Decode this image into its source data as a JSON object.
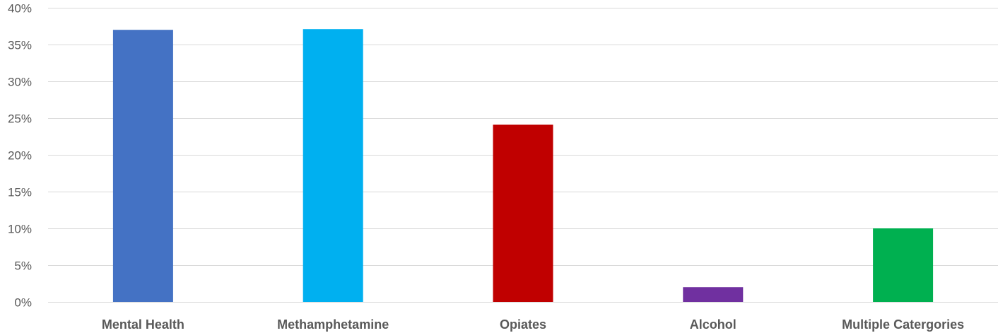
{
  "chart_data": {
    "type": "bar",
    "title": "",
    "xlabel": "",
    "ylabel": "",
    "categories": [
      "Mental Health",
      "Methamphetamine",
      "Opiates",
      "Alcohol",
      "Multiple Catergories"
    ],
    "values": [
      37,
      37.1,
      24.1,
      2,
      10
    ],
    "colors": [
      "#4472C4",
      "#00B0F0",
      "#C00000",
      "#7030A0",
      "#00B050"
    ],
    "ylim": [
      0,
      40
    ],
    "yticks": [
      0,
      5,
      10,
      15,
      20,
      25,
      30,
      35,
      40
    ],
    "ytick_labels": [
      "0%",
      "5%",
      "10%",
      "15%",
      "20%",
      "25%",
      "30%",
      "35%",
      "40%"
    ],
    "grid": true,
    "legend": "none"
  }
}
